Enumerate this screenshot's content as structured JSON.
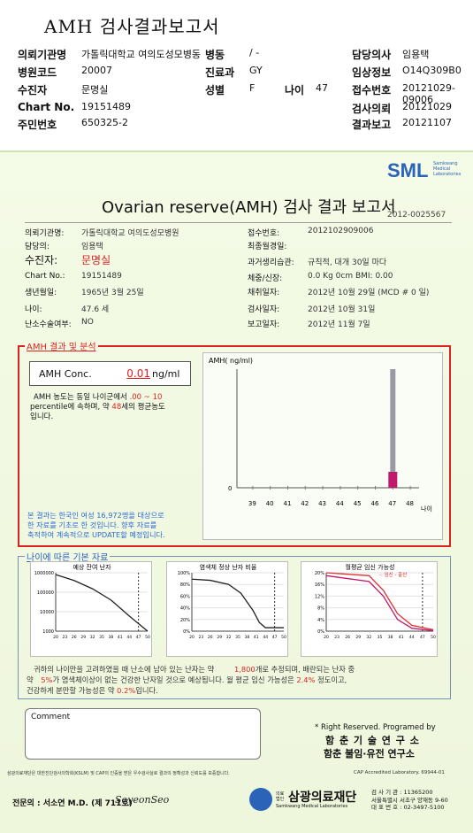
{
  "header": {
    "title": "AMH 검사결과보고서",
    "rows": [
      {
        "l1": "의뢰기관명",
        "v1": "가톨릭대학교 여의도성모병동",
        "l2": "병동",
        "v2": "/ -",
        "l3": "담당의사",
        "v3": "임용택"
      },
      {
        "l1": "병원코드",
        "v1": "20007",
        "l2": "진료과",
        "v2": "GY",
        "l3": "임상정보",
        "v3": "O14Q309B0"
      },
      {
        "l1": "수진자",
        "v1": "문명실",
        "l2": "성별",
        "v2": "F",
        "l4": "나이",
        "v4": "47",
        "l3": "접수번호",
        "v3": "20121029-09006"
      },
      {
        "l1": "Chart No.",
        "v1": "19151489",
        "l3": "검사의뢰",
        "v3": "20121029"
      },
      {
        "l1": "주민번호",
        "v1": "650325-2",
        "l3": "결과보고",
        "v3": "20121107"
      }
    ]
  },
  "report": {
    "logo": "SML",
    "logo_sub1": "Samkwang",
    "logo_sub2": "Medical",
    "logo_sub3": "Laboratories",
    "title": "Ovarian reserve(AMH) 검사 결과 보고서",
    "report_no": "2012-0025567",
    "left_fields": [
      {
        "label": "의뢰기관명:",
        "value": "가톨릭대학교 여의도성모병원"
      },
      {
        "label": "담당의:",
        "value": "임용택"
      },
      {
        "label": "수진자:",
        "value": "문명실"
      },
      {
        "label": "Chart No.:",
        "value": "19151489"
      },
      {
        "label": "생년월일:",
        "value": "1965년 3월 25일"
      },
      {
        "label": "나이:",
        "value": "47.6 세"
      },
      {
        "label": "난소수술여부:",
        "value": "NO"
      }
    ],
    "right_fields": [
      {
        "label": "접수번호:",
        "value": "2012102909006"
      },
      {
        "label": "최종월경일:",
        "value": ""
      },
      {
        "label": "과거생리습관:",
        "value": "규칙적, 대개   30일 마다"
      },
      {
        "label": "체중/신장:",
        "value": "0.0 Kg      0cm     BMI:   0.00"
      },
      {
        "label": "채취일자:",
        "value": "2012년 10월 29일  (MCD #  0 일)"
      },
      {
        "label": "검사일자:",
        "value": "2012년 10월 31일"
      },
      {
        "label": "보고일자:",
        "value": "2012년 11월 7일"
      }
    ],
    "amh_section_title": "AMH 결과 및 분석",
    "amh_label": "AMH Conc.",
    "amh_value": "0.01",
    "amh_unit": "ng/ml",
    "analysis_text_1": "AMH 농도는 동일 나이군에서",
    "analysis_pct": ".00 ~  10",
    "analysis_text_2": "percentile에 속하며, 약",
    "analysis_age": "48",
    "analysis_text_3": "세의 평균농도",
    "analysis_text_4": "입니다.",
    "note_lines": [
      "본 결과는 한국인 여성 16,972명을 대상으로",
      "한 자료를 기초로 한 것입니다. 향후 자료를",
      "축적하여 계속적으로 UPDATE할 예정입니다."
    ],
    "age_section_title": "나이에 따른 기본 자료",
    "chart_titles": [
      "예상 잔여 난자",
      "염색체 정상 난자 비율",
      "월평균 임신 가능성"
    ],
    "chart3_legend": "-: 임신 -  출산",
    "summary_lines": [
      "귀하의 나이만을 고려하였을 때 난소에 남아 있는 난자는 약",
      "개로 추정되며, 배란되는 난자 중",
      "약",
      "가 염색체이상이 없는 건강한 난자일 것으로 예상됩니다. 월 평균 임신 가능성은",
      "정도이고,",
      "건강하게 분만할 가능성은 약",
      "입니다."
    ],
    "summary_values": {
      "eggs": "1,800",
      "normal": "5%",
      "preg": "2.4%",
      "birth": "0.2%"
    },
    "comment_label": "Comment",
    "right_reserved": "* Right Reserved. Programed by",
    "org1": "함 춘 기 술 연 구 소",
    "org2": "함춘 불임·유전 연구소",
    "footer_small": "삼광의료재단은 대한진단검사의학회(KSLM) 및 CAP의 인증을 받은 우수검사실로 결과의 정확성과 신뢰도를 보증합니다.",
    "cap": "CAP Accredited Laboratory. 69944-01",
    "signer": "전문의 : 서소연 M.D. (제 711호)",
    "signature": "SoyeonSeo",
    "foundation_small1": "의료",
    "foundation_small2": "법인",
    "foundation": "삼광의료재단",
    "foundation_en": "Samkwang Medical Laboratories",
    "contact_lines": [
      "검 사 기 관 : 11365200",
      "서울특별시 서초구 양재동 9-60",
      "대 표 번 호 : 02-3497-5100"
    ]
  },
  "chart_data": [
    {
      "type": "bar",
      "title": "",
      "ylabel": "AMH( ng/ml)",
      "xlabel": "나이",
      "categories": [
        "39",
        "40",
        "41",
        "42",
        "43",
        "44",
        "45",
        "46",
        "47",
        "48"
      ],
      "highlight": {
        "age": "47",
        "value": 0.01
      },
      "y_tick": "0"
    },
    {
      "type": "line",
      "title": "예상 잔여 난자",
      "y_scale": "log",
      "yticks": [
        "1000000",
        "100000",
        "10000",
        "1000"
      ],
      "xticks": [
        "20",
        "23",
        "26",
        "29",
        "32",
        "35",
        "38",
        "41",
        "44",
        "47",
        "50"
      ],
      "x": [
        20,
        26,
        32,
        38,
        44,
        50
      ],
      "y": [
        800000,
        400000,
        150000,
        40000,
        6000,
        1000
      ]
    },
    {
      "type": "line",
      "title": "염색체 정상 난자 비율",
      "yticks": [
        "100%",
        "80%",
        "60%",
        "40%",
        "20%",
        "0%"
      ],
      "xticks": [
        "20",
        "23",
        "26",
        "29",
        "32",
        "35",
        "38",
        "41",
        "44",
        "47",
        "50"
      ],
      "x": [
        20,
        26,
        32,
        36,
        40,
        42,
        44,
        50
      ],
      "y": [
        89,
        87,
        80,
        65,
        35,
        15,
        6,
        6
      ]
    },
    {
      "type": "line",
      "title": "월평균 임신 가능성",
      "yticks": [
        "20%",
        "16%",
        "12%",
        "8%",
        "4%",
        "0%"
      ],
      "xticks": [
        "20",
        "23",
        "26",
        "29",
        "32",
        "35",
        "38",
        "41",
        "44",
        "47",
        "50"
      ],
      "series": [
        {
          "name": "임신",
          "x": [
            20,
            32,
            36,
            40,
            44,
            50
          ],
          "y": [
            20,
            19,
            14,
            6,
            2,
            0.5
          ]
        },
        {
          "name": "출산",
          "x": [
            20,
            32,
            36,
            40,
            44,
            50
          ],
          "y": [
            19,
            17,
            12,
            4,
            1,
            0.2
          ]
        }
      ]
    }
  ]
}
